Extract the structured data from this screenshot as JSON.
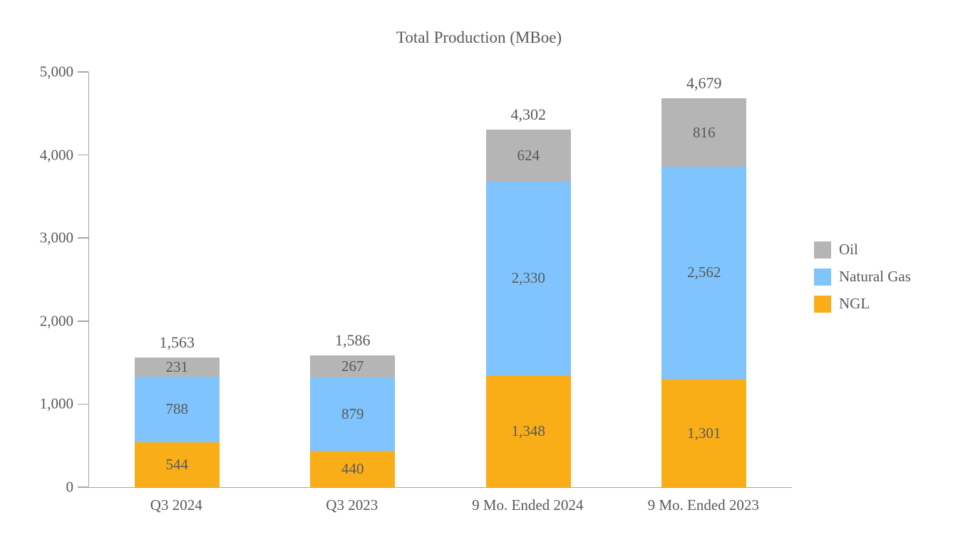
{
  "chart_data": {
    "type": "bar",
    "stacked": true,
    "title": "Total Production (MBoe)",
    "categories": [
      "Q3 2024",
      "Q3 2023",
      "9 Mo. Ended 2024",
      "9 Mo. Ended 2023"
    ],
    "series": [
      {
        "name": "NGL",
        "color": "#F9AE18",
        "values": [
          544,
          440,
          1348,
          1301
        ]
      },
      {
        "name": "Natural Gas",
        "color": "#7FC4FC",
        "values": [
          788,
          879,
          2330,
          2562
        ]
      },
      {
        "name": "Oil",
        "color": "#B5B5B5",
        "values": [
          231,
          267,
          624,
          816
        ]
      }
    ],
    "totals": [
      1563,
      1586,
      4302,
      4679
    ],
    "ylim": [
      0,
      5000
    ],
    "y_tick_labels": [
      "5,000",
      "4,000",
      "3,000",
      "2,000",
      "1,000",
      "0"
    ],
    "grid": false,
    "legend_position": "right",
    "legend": [
      {
        "label": "Oil",
        "color": "#B5B5B5"
      },
      {
        "label": "Natural Gas",
        "color": "#7FC4FC"
      },
      {
        "label": "NGL",
        "color": "#F9AE18"
      }
    ],
    "text_color": "#595959",
    "axis_color": "#A6A6A6"
  }
}
